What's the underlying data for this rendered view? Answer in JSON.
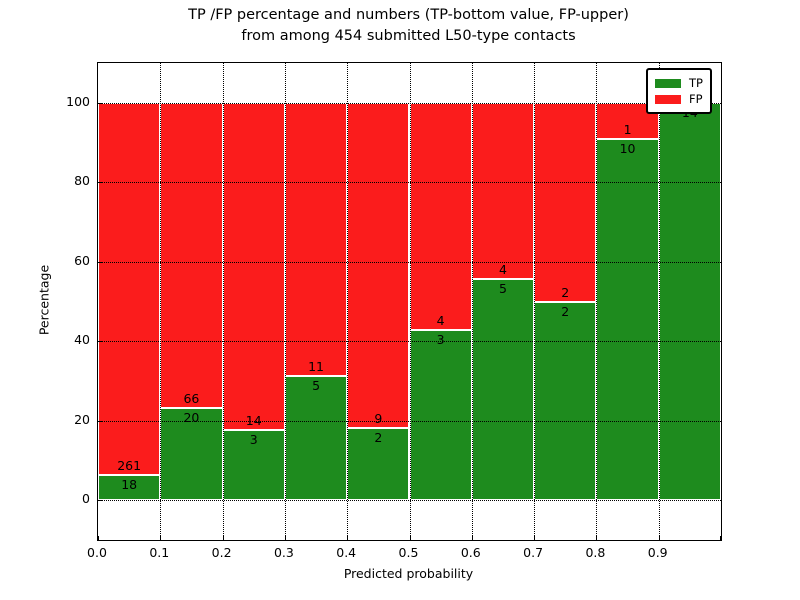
{
  "title": {
    "line1": "TP /FP percentage and numbers (TP-bottom value, FP-upper)",
    "line2": "from among 454 submitted L50-type contacts"
  },
  "axes": {
    "ylabel": "Percentage",
    "xlabel": "Predicted probability",
    "y_ticks": [
      0,
      20,
      40,
      60,
      80,
      100
    ],
    "x_tick_labels": [
      "0.0",
      "0.1",
      "0.2",
      "0.3",
      "0.4",
      "0.5",
      "0.6",
      "0.7",
      "0.8",
      "0.9"
    ],
    "ylim": [
      -10,
      110
    ],
    "xlim": [
      0.0,
      1.0
    ],
    "grid": "dotted"
  },
  "legend": {
    "position": "upper-right",
    "items": [
      {
        "label": "TP",
        "color": "#1e8b1e"
      },
      {
        "label": "FP",
        "color": "#fb1c1c"
      }
    ]
  },
  "colors": {
    "tp_green": "#1e8b1e",
    "fp_red": "#fb1c1c",
    "bar_edge": "#ffffff",
    "grid": "#000000"
  },
  "chart_data": {
    "type": "bar",
    "stacked": true,
    "normalized_to_percent": true,
    "title": "TP /FP percentage and numbers (TP-bottom value, FP-upper) from among 454 submitted L50-type contacts",
    "xlabel": "Predicted probability",
    "ylabel": "Percentage",
    "total_contacts": 454,
    "bin_edges": [
      0.0,
      0.1,
      0.2,
      0.3,
      0.4,
      0.5,
      0.6,
      0.7,
      0.8,
      0.9,
      1.0
    ],
    "categories": [
      "0.0-0.1",
      "0.1-0.2",
      "0.2-0.3",
      "0.3-0.4",
      "0.4-0.5",
      "0.5-0.6",
      "0.6-0.7",
      "0.7-0.8",
      "0.8-0.9",
      "0.9-1.0"
    ],
    "series": [
      {
        "name": "TP",
        "color": "#1e8b1e",
        "counts": [
          18,
          20,
          3,
          5,
          2,
          3,
          5,
          2,
          10,
          14
        ]
      },
      {
        "name": "FP",
        "color": "#fb1c1c",
        "counts": [
          261,
          66,
          14,
          11,
          9,
          4,
          4,
          2,
          1,
          0
        ]
      }
    ],
    "tp_percent": [
      6.5,
      23.3,
      17.6,
      31.3,
      18.2,
      42.9,
      55.6,
      50.0,
      90.9,
      100.0
    ],
    "ylim": [
      -10,
      110
    ],
    "legend_position": "upper right"
  }
}
